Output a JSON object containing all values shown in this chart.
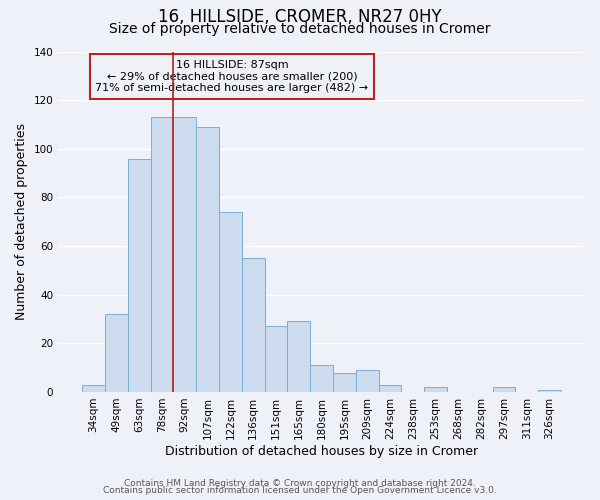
{
  "title": "16, HILLSIDE, CROMER, NR27 0HY",
  "subtitle": "Size of property relative to detached houses in Cromer",
  "xlabel": "Distribution of detached houses by size in Cromer",
  "ylabel": "Number of detached properties",
  "bar_labels": [
    "34sqm",
    "49sqm",
    "63sqm",
    "78sqm",
    "92sqm",
    "107sqm",
    "122sqm",
    "136sqm",
    "151sqm",
    "165sqm",
    "180sqm",
    "195sqm",
    "209sqm",
    "224sqm",
    "238sqm",
    "253sqm",
    "268sqm",
    "282sqm",
    "297sqm",
    "311sqm",
    "326sqm"
  ],
  "bar_values": [
    3,
    32,
    96,
    113,
    113,
    109,
    74,
    55,
    27,
    29,
    11,
    8,
    9,
    3,
    0,
    2,
    0,
    0,
    2,
    0,
    1
  ],
  "bar_color": "#ccdcee",
  "bar_edge_color": "#7aafd4",
  "ylim": [
    0,
    140
  ],
  "yticks": [
    0,
    20,
    40,
    60,
    80,
    100,
    120,
    140
  ],
  "property_label_line0": "16 HILLSIDE: 87sqm",
  "annotation_line1": "← 29% of detached houses are smaller (200)",
  "annotation_line2": "71% of semi-detached houses are larger (482) →",
  "vline_x": 3.5,
  "vline_color": "#aa2222",
  "annotation_box_edge_color": "#bb2222",
  "footnote1": "Contains HM Land Registry data © Crown copyright and database right 2024.",
  "footnote2": "Contains public sector information licensed under the Open Government Licence v3.0.",
  "background_color": "#eef2f8",
  "grid_color": "#ffffff",
  "title_fontsize": 12,
  "subtitle_fontsize": 10,
  "axis_label_fontsize": 9,
  "tick_fontsize": 7.5,
  "annotation_fontsize": 8,
  "footnote_fontsize": 6.5
}
